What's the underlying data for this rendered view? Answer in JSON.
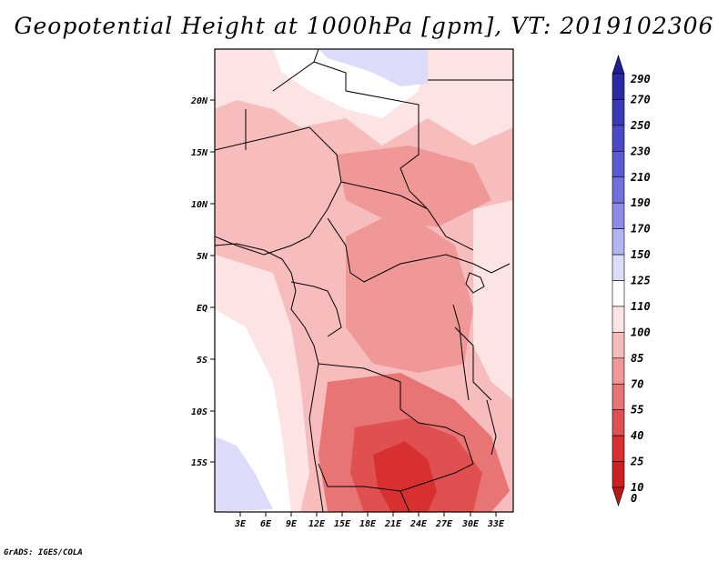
{
  "title": "Geopotential Height at 1000hPa [gpm], VT: 2019102306",
  "footer": "GrADS: IGES/COLA",
  "map": {
    "lat_ticks": [
      "20N",
      "15N",
      "10N",
      "5N",
      "EQ",
      "5S",
      "10S",
      "15S"
    ],
    "lon_ticks": [
      "3E",
      "6E",
      "9E",
      "12E",
      "15E",
      "18E",
      "21E",
      "24E",
      "27E",
      "30E",
      "33E"
    ]
  },
  "colorbar": {
    "levels": [
      "290",
      "270",
      "250",
      "230",
      "210",
      "190",
      "170",
      "150",
      "125",
      "110",
      "100",
      "85",
      "70",
      "55",
      "40",
      "25",
      "10",
      "0"
    ],
    "colors": [
      "#1e1e96",
      "#2a2aa8",
      "#3a3ab8",
      "#4a4ac6",
      "#5a5ad2",
      "#7070de",
      "#8c8ce8",
      "#b4b4f2",
      "#dcdcfa",
      "#ffffff",
      "#fce4e4",
      "#f7bcbc",
      "#f09898",
      "#e87474",
      "#e05050",
      "#d83030",
      "#cc2020",
      "#b81818"
    ]
  }
}
